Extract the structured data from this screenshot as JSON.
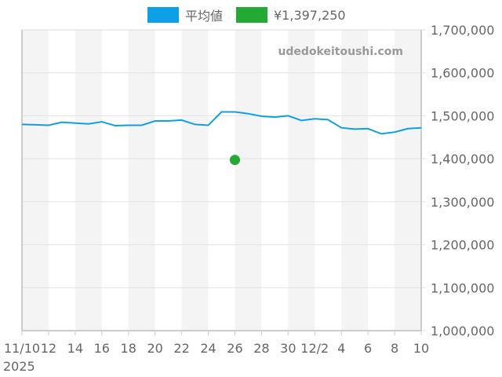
{
  "legend": {
    "items": [
      {
        "label": "平均値",
        "color": "#0ea0e6"
      },
      {
        "label": "¥1,397,250",
        "color": "#22aa33"
      }
    ]
  },
  "watermark": "udedokeitoushi.com",
  "axes": {
    "y_ticks": [
      "1,000,000",
      "1,100,000",
      "1,200,000",
      "1,300,000",
      "1,400,000",
      "1,500,000",
      "1,600,000",
      "1,700,000"
    ],
    "x_ticks": [
      "11/10",
      "12",
      "14",
      "16",
      "18",
      "20",
      "22",
      "24",
      "26",
      "28",
      "30",
      "12/2",
      "4",
      "6",
      "8",
      "10"
    ],
    "x_year": "2025"
  },
  "chart_data": {
    "type": "line",
    "title": "",
    "xlabel": "",
    "ylabel": "",
    "ylim": [
      1000000,
      1700000
    ],
    "grid": true,
    "legend_position": "top",
    "x": [
      "2025-11-10",
      "2025-11-11",
      "2025-11-12",
      "2025-11-13",
      "2025-11-14",
      "2025-11-15",
      "2025-11-16",
      "2025-11-17",
      "2025-11-18",
      "2025-11-19",
      "2025-11-20",
      "2025-11-21",
      "2025-11-22",
      "2025-11-23",
      "2025-11-24",
      "2025-11-25",
      "2025-11-26",
      "2025-11-27",
      "2025-11-28",
      "2025-11-29",
      "2025-11-30",
      "2025-12-01",
      "2025-12-02",
      "2025-12-03",
      "2025-12-04",
      "2025-12-05",
      "2025-12-06",
      "2025-12-07",
      "2025-12-08",
      "2025-12-09",
      "2025-12-10"
    ],
    "x_tick_labels": [
      "11/10",
      "12",
      "14",
      "16",
      "18",
      "20",
      "22",
      "24",
      "26",
      "28",
      "30",
      "12/2",
      "4",
      "6",
      "8",
      "10"
    ],
    "y_tick_labels": [
      "1,000,000",
      "1,100,000",
      "1,200,000",
      "1,300,000",
      "1,400,000",
      "1,500,000",
      "1,600,000",
      "1,700,000"
    ],
    "series": [
      {
        "name": "平均値",
        "type": "line",
        "color": "#0ea0e6",
        "values": [
          1480000,
          1479000,
          1478000,
          1485000,
          1483000,
          1481000,
          1486000,
          1477000,
          1478000,
          1478000,
          1488000,
          1488000,
          1490000,
          1480000,
          1478000,
          1509000,
          1509000,
          1505000,
          1499000,
          1497000,
          1500000,
          1489000,
          1493000,
          1491000,
          1472000,
          1469000,
          1470000,
          1458000,
          1462000,
          1470000,
          1472000
        ]
      },
      {
        "name": "¥1,397,250",
        "type": "scatter",
        "color": "#22aa33",
        "points": [
          {
            "x": "2025-11-26",
            "y": 1397250
          }
        ]
      }
    ]
  }
}
